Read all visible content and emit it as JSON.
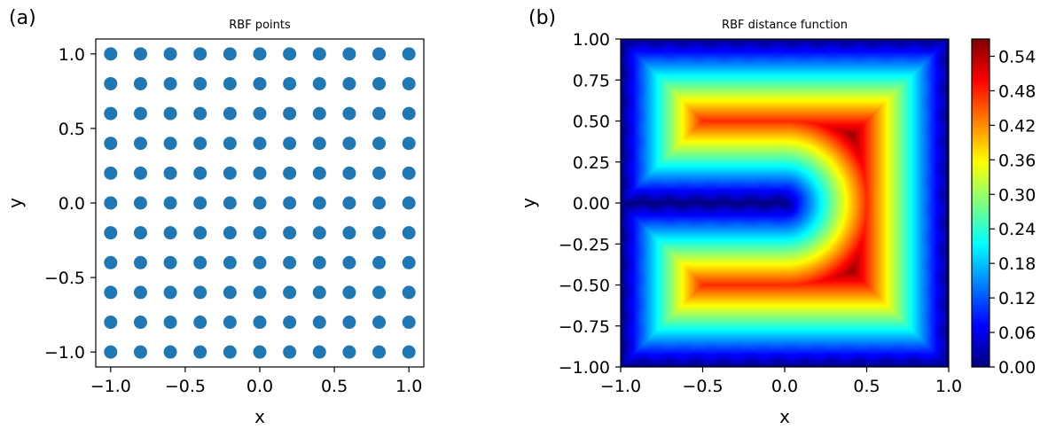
{
  "chart_data": [
    {
      "panel_label": "(a)",
      "type": "scatter",
      "title": "RBF points",
      "xlabel": "x",
      "ylabel": "y",
      "xlim": [
        -1.1,
        1.1
      ],
      "ylim": [
        -1.1,
        1.1
      ],
      "grid": false,
      "marker_color": "#1f77b4",
      "x_values": [
        -1.0,
        -0.8,
        -0.6,
        -0.4,
        -0.2,
        0.0,
        0.2,
        0.4,
        0.6,
        0.8,
        1.0
      ],
      "y_values": [
        -1.0,
        -0.8,
        -0.6,
        -0.4,
        -0.2,
        0.0,
        0.2,
        0.4,
        0.6,
        0.8,
        1.0
      ],
      "x_ticks": [
        -1.0,
        -0.5,
        0.0,
        0.5,
        1.0
      ],
      "x_tick_labels": [
        "−1.0",
        "−0.5",
        "0.0",
        "0.5",
        "1.0"
      ],
      "y_ticks": [
        -1.0,
        -0.5,
        0.0,
        0.5,
        1.0
      ],
      "y_tick_labels": [
        "−1.0",
        "−0.5",
        "0.0",
        "0.5",
        "1.0"
      ]
    },
    {
      "panel_label": "(b)",
      "type": "heatmap",
      "title": "RBF distance function",
      "xlabel": "x",
      "ylabel": "y",
      "xlim": [
        -1.0,
        1.0
      ],
      "ylim": [
        -1.0,
        1.0
      ],
      "grid": false,
      "colormap": "jet",
      "vmin": 0.0,
      "vmax": 0.57,
      "x_ticks": [
        -1.0,
        -0.5,
        0.0,
        0.5,
        1.0
      ],
      "x_tick_labels": [
        "−1.0",
        "−0.5",
        "0.0",
        "0.5",
        "1.0"
      ],
      "y_ticks": [
        -1.0,
        -0.75,
        -0.5,
        -0.25,
        0.0,
        0.25,
        0.5,
        0.75,
        1.0
      ],
      "y_tick_labels": [
        "−1.00",
        "−0.75",
        "−0.50",
        "−0.25",
        "0.00",
        "0.25",
        "0.50",
        "0.75",
        "1.00"
      ],
      "colorbar_ticks": [
        0.0,
        0.06,
        0.12,
        0.18,
        0.24,
        0.3,
        0.36,
        0.42,
        0.48,
        0.54
      ],
      "colorbar_tick_labels": [
        "0.00",
        "0.06",
        "0.12",
        "0.18",
        "0.24",
        "0.30",
        "0.36",
        "0.42",
        "0.48",
        "0.54"
      ]
    }
  ]
}
